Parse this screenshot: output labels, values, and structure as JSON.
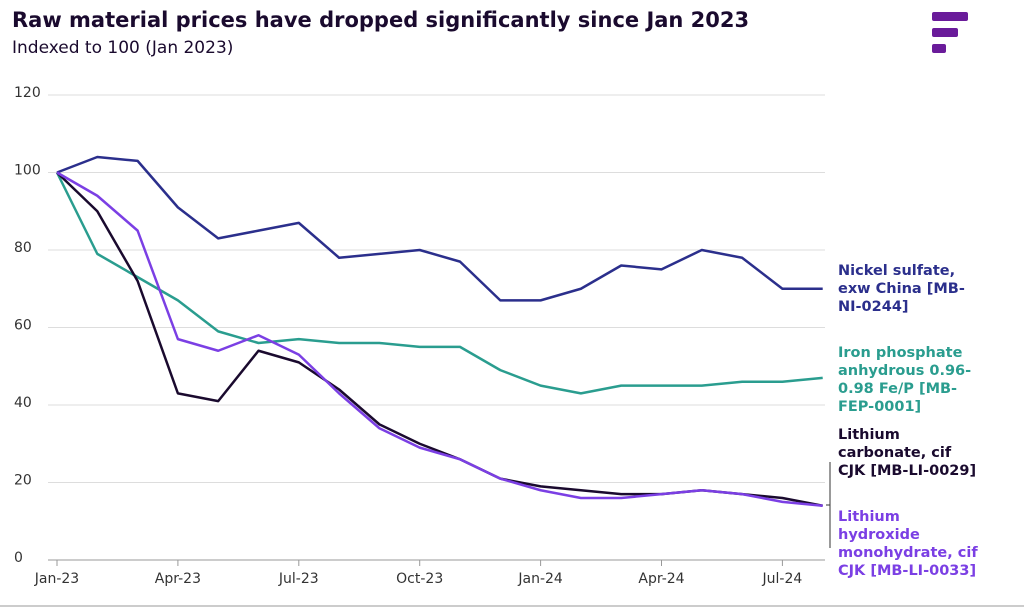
{
  "chart_data": {
    "type": "line",
    "title": "Raw material prices have dropped significantly since Jan 2023",
    "subtitle": "Indexed to 100 (Jan 2023)",
    "categories": [
      "Jan-23",
      null,
      null,
      "Apr-23",
      null,
      null,
      "Jul-23",
      null,
      null,
      "Oct-23",
      null,
      null,
      "Jan-24",
      null,
      null,
      "Apr-24",
      null,
      null,
      "Jul-24",
      null
    ],
    "ylim": [
      0,
      120
    ],
    "yticks": [
      0,
      20,
      40,
      60,
      80,
      100,
      120
    ],
    "grid": true,
    "series": [
      {
        "name": "Nickel sulfate, exw China [MB-NI-0244]",
        "color": "#2b2f8c",
        "values": [
          100,
          104,
          103,
          91,
          83,
          85,
          87,
          78,
          79,
          80,
          77,
          67,
          67,
          70,
          76,
          75,
          80,
          78,
          70,
          70
        ]
      },
      {
        "name": "Iron phosphate anhydrous 0.96-0.98 Fe/P [MB-FEP-0001]",
        "color": "#2a9d8f",
        "values": [
          100,
          79,
          73,
          67,
          59,
          56,
          57,
          56,
          56,
          55,
          55,
          49,
          45,
          43,
          45,
          45,
          45,
          46,
          46,
          47
        ]
      },
      {
        "name": "Lithium carbonate, cif CJK [MB-LI-0029]",
        "color": "#1a0a2e",
        "values": [
          100,
          90,
          72,
          43,
          41,
          54,
          51,
          44,
          35,
          30,
          26,
          21,
          19,
          18,
          17,
          17,
          18,
          17,
          16,
          14
        ]
      },
      {
        "name": "Lithium hydroxide monohydrate, cif CJK [MB-LI-0033]",
        "color": "#7b3fe4",
        "values": [
          100,
          94,
          85,
          57,
          54,
          58,
          53,
          43,
          34,
          29,
          26,
          21,
          18,
          16,
          16,
          17,
          18,
          17,
          15,
          14
        ]
      }
    ]
  }
}
